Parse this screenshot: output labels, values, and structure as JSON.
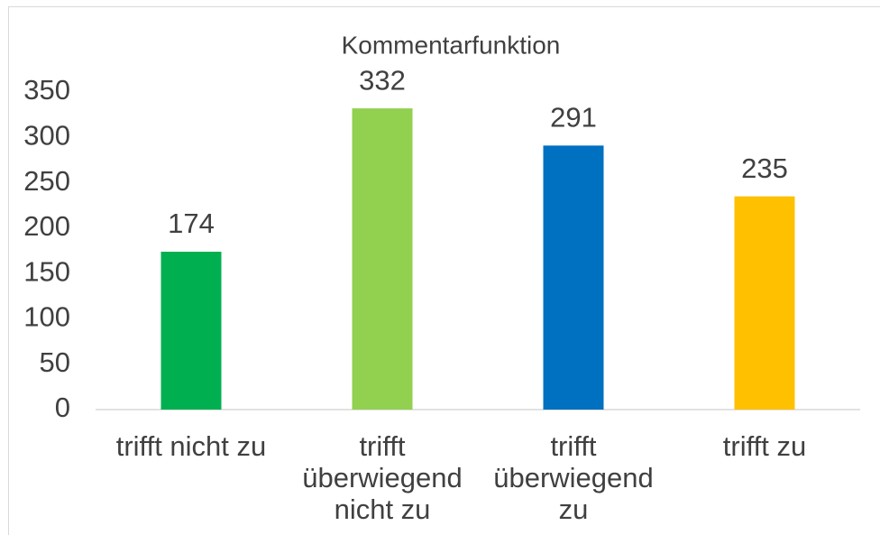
{
  "chart_data": {
    "type": "bar",
    "title": "Kommentarfunktion",
    "categories": [
      "trifft nicht zu",
      "trifft überwiegend nicht zu",
      "trifft überwiegend zu",
      "trifft zu"
    ],
    "values": [
      174,
      332,
      291,
      235
    ],
    "colors": [
      "#00b050",
      "#92d050",
      "#0070c0",
      "#ffc000"
    ],
    "ylim": [
      0,
      350
    ],
    "yticks": [
      0,
      50,
      100,
      150,
      200,
      250,
      300,
      350
    ],
    "grid": false
  }
}
